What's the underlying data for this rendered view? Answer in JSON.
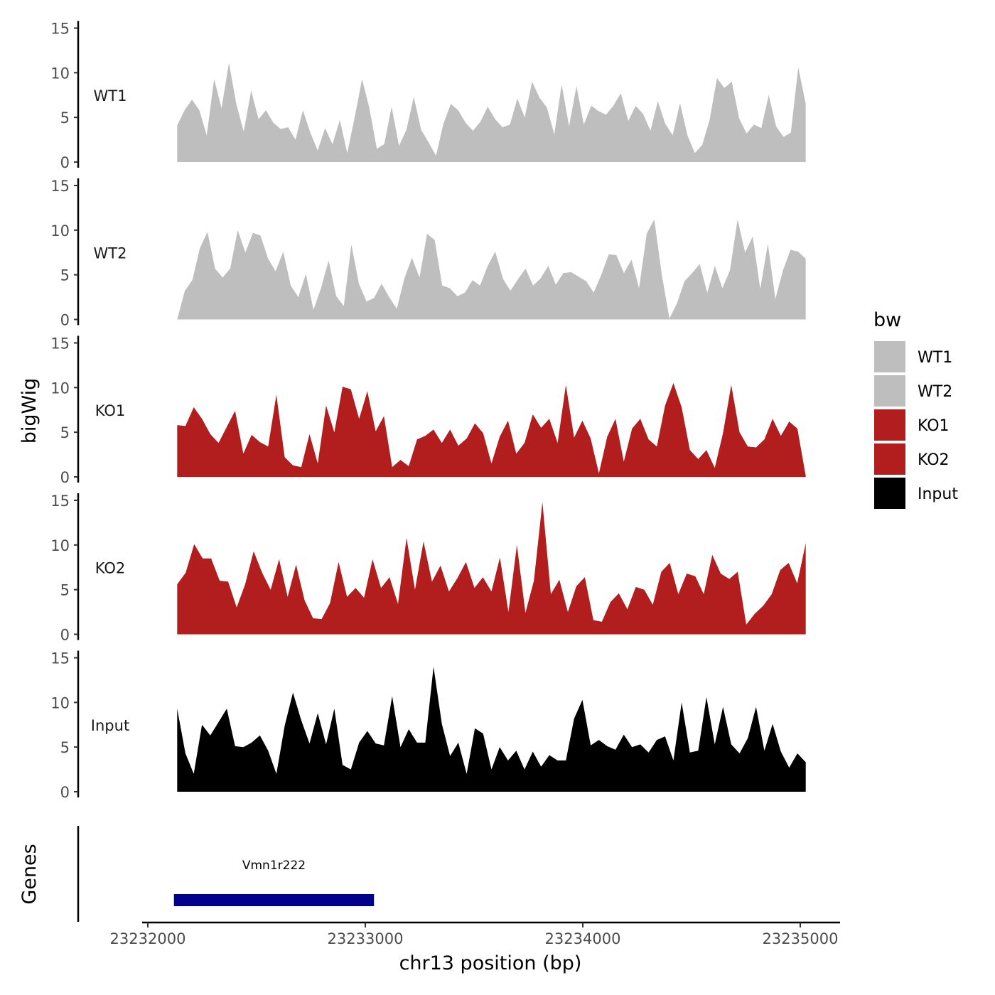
{
  "chart_data": {
    "type": "area",
    "ylabel": "bigWig",
    "xlabel": "chr13 position (bp)",
    "genes_label": "Genes",
    "x_range": [
      23232000,
      23235000
    ],
    "x_ticks": [
      23232000,
      23233000,
      23234000,
      23235000
    ],
    "x_tick_labels": [
      "23232000",
      "23233000",
      "23234000",
      "23235000"
    ],
    "y_range": [
      0,
      15
    ],
    "y_ticks": [
      0,
      5,
      10,
      15
    ],
    "y_tick_labels": [
      "0",
      "5",
      "10",
      "15"
    ],
    "colors": {
      "WT": "#bebebe",
      "KO": "#b21e1e",
      "Input": "#000000",
      "gene": "#00008b"
    },
    "legend": {
      "title": "bw",
      "position": "right",
      "entries": [
        {
          "label": "WT1",
          "color": "#bebebe"
        },
        {
          "label": "WT2",
          "color": "#bebebe"
        },
        {
          "label": "KO1",
          "color": "#b21e1e"
        },
        {
          "label": "KO2",
          "color": "#b21e1e"
        },
        {
          "label": "Input",
          "color": "#000000"
        }
      ]
    },
    "tracks": [
      {
        "name": "WT1",
        "color": "#bebebe",
        "x_start": 23232135,
        "x_end": 23235025,
        "values": [
          4.1,
          5.8,
          7.0,
          5.8,
          3.0,
          9.3,
          6.0,
          11.1,
          6.5,
          3.4,
          8.0,
          4.8,
          5.8,
          4.4,
          3.7,
          3.9,
          2.5,
          5.8,
          3.3,
          1.3,
          3.8,
          2.0,
          4.7,
          1.0,
          5.0,
          9.3,
          6.0,
          1.5,
          2.0,
          6.2,
          1.8,
          3.6,
          7.3,
          3.6,
          2.2,
          0.7,
          4.3,
          6.5,
          5.8,
          4.4,
          3.5,
          4.5,
          6.2,
          4.8,
          3.9,
          4.2,
          7.1,
          5.0,
          9.0,
          7.2,
          6.1,
          3.1,
          8.7,
          4.0,
          8.5,
          4.2,
          6.3,
          5.7,
          5.3,
          6.3,
          7.7,
          4.6,
          6.3,
          5.4,
          3.5,
          6.8,
          4.3,
          3.0,
          6.6,
          3.0,
          1.0,
          1.9,
          4.7,
          9.4,
          8.3,
          9.0,
          4.9,
          3.2,
          4.2,
          3.8,
          7.5,
          4.0,
          2.8,
          3.3,
          10.6,
          6.5
        ]
      },
      {
        "name": "WT2",
        "color": "#bebebe",
        "x_start": 23232135,
        "x_end": 23235025,
        "values": [
          0.0,
          3.2,
          4.4,
          8.0,
          9.8,
          5.7,
          4.7,
          5.7,
          10.0,
          7.5,
          9.7,
          9.4,
          6.8,
          5.4,
          7.6,
          3.8,
          2.5,
          5.1,
          1.1,
          3.5,
          6.6,
          2.6,
          1.5,
          8.4,
          4.0,
          2.0,
          2.4,
          4.0,
          2.5,
          1.2,
          4.6,
          6.9,
          4.7,
          9.6,
          8.9,
          3.8,
          3.5,
          2.6,
          3.0,
          4.4,
          3.8,
          6.0,
          7.6,
          4.6,
          3.2,
          4.5,
          5.7,
          3.8,
          4.6,
          6.0,
          3.9,
          5.2,
          5.3,
          4.8,
          4.3,
          3.0,
          5.0,
          7.3,
          7.2,
          5.2,
          6.7,
          3.5,
          9.6,
          11.2,
          5.0,
          0.1,
          1.8,
          4.3,
          5.2,
          6.2,
          3.0,
          6.0,
          3.5,
          5.5,
          11.2,
          7.5,
          9.3,
          3.4,
          8.5,
          2.3,
          5.5,
          7.8,
          7.6,
          6.8
        ]
      },
      {
        "name": "KO1",
        "color": "#b21e1e",
        "x_start": 23232135,
        "x_end": 23235025,
        "values": [
          5.8,
          5.7,
          7.8,
          6.5,
          4.8,
          3.8,
          5.6,
          7.4,
          2.6,
          4.7,
          3.9,
          3.4,
          9.2,
          2.2,
          1.3,
          1.1,
          4.8,
          1.5,
          8.0,
          5.0,
          10.1,
          9.8,
          6.5,
          9.6,
          5.1,
          6.8,
          1.1,
          1.9,
          1.2,
          4.2,
          4.6,
          5.3,
          3.8,
          5.3,
          3.5,
          4.3,
          6.0,
          4.9,
          1.5,
          4.5,
          6.3,
          2.6,
          3.8,
          7.0,
          5.5,
          6.5,
          3.8,
          10.3,
          4.4,
          6.3,
          4.3,
          0.4,
          4.5,
          6.5,
          1.7,
          5.4,
          6.5,
          4.2,
          3.4,
          8.0,
          10.5,
          7.8,
          3.0,
          2.0,
          3.0,
          1.0,
          4.9,
          10.3,
          5.0,
          3.4,
          3.3,
          4.2,
          6.5,
          4.6,
          6.2,
          5.4,
          0.1
        ]
      },
      {
        "name": "KO2",
        "color": "#b21e1e",
        "x_start": 23232135,
        "x_end": 23235025,
        "values": [
          5.6,
          6.9,
          10.1,
          8.5,
          8.5,
          6.0,
          5.9,
          3.0,
          5.6,
          9.3,
          6.9,
          5.0,
          8.4,
          4.2,
          7.8,
          3.8,
          1.8,
          1.7,
          3.5,
          8.1,
          4.2,
          5.2,
          4.1,
          8.4,
          5.2,
          6.4,
          3.4,
          10.8,
          5.0,
          10.4,
          5.9,
          7.7,
          4.8,
          6.3,
          8.1,
          5.2,
          6.4,
          4.8,
          8.6,
          2.5,
          10.0,
          2.4,
          6.0,
          14.8,
          4.5,
          6.1,
          2.5,
          5.4,
          6.4,
          1.6,
          1.4,
          3.6,
          4.6,
          2.8,
          5.3,
          5.0,
          3.3,
          7.0,
          8.0,
          4.5,
          6.8,
          6.5,
          4.5,
          8.9,
          6.8,
          6.2,
          7.0,
          1.1,
          2.3,
          3.2,
          4.5,
          7.2,
          8.0,
          5.7,
          10.2
        ]
      },
      {
        "name": "Input",
        "color": "#000000",
        "x_start": 23232135,
        "x_end": 23235025,
        "values": [
          9.3,
          4.3,
          2.0,
          7.5,
          6.3,
          7.8,
          9.3,
          5.1,
          5.0,
          5.5,
          6.3,
          4.6,
          2.0,
          7.4,
          11.1,
          8.0,
          5.4,
          8.8,
          5.3,
          9.3,
          3.0,
          2.5,
          5.5,
          6.8,
          5.4,
          5.2,
          10.7,
          5.0,
          7.0,
          5.5,
          5.5,
          14.0,
          7.6,
          4.0,
          5.5,
          2.0,
          7.1,
          6.5,
          2.5,
          5.0,
          3.5,
          4.6,
          2.5,
          4.5,
          2.8,
          4.1,
          3.5,
          3.5,
          8.2,
          10.3,
          5.2,
          5.8,
          5.1,
          4.7,
          6.4,
          5.0,
          5.3,
          4.4,
          5.8,
          6.2,
          3.5,
          10.0,
          4.4,
          4.6,
          10.6,
          5.3,
          9.5,
          5.3,
          4.3,
          6.0,
          9.5,
          4.6,
          7.6,
          4.5,
          2.7,
          4.3,
          3.3
        ]
      }
    ],
    "genes": [
      {
        "name": "Vmn1r222",
        "start": 23232120,
        "end": 23233040,
        "color": "#00008b"
      }
    ]
  }
}
